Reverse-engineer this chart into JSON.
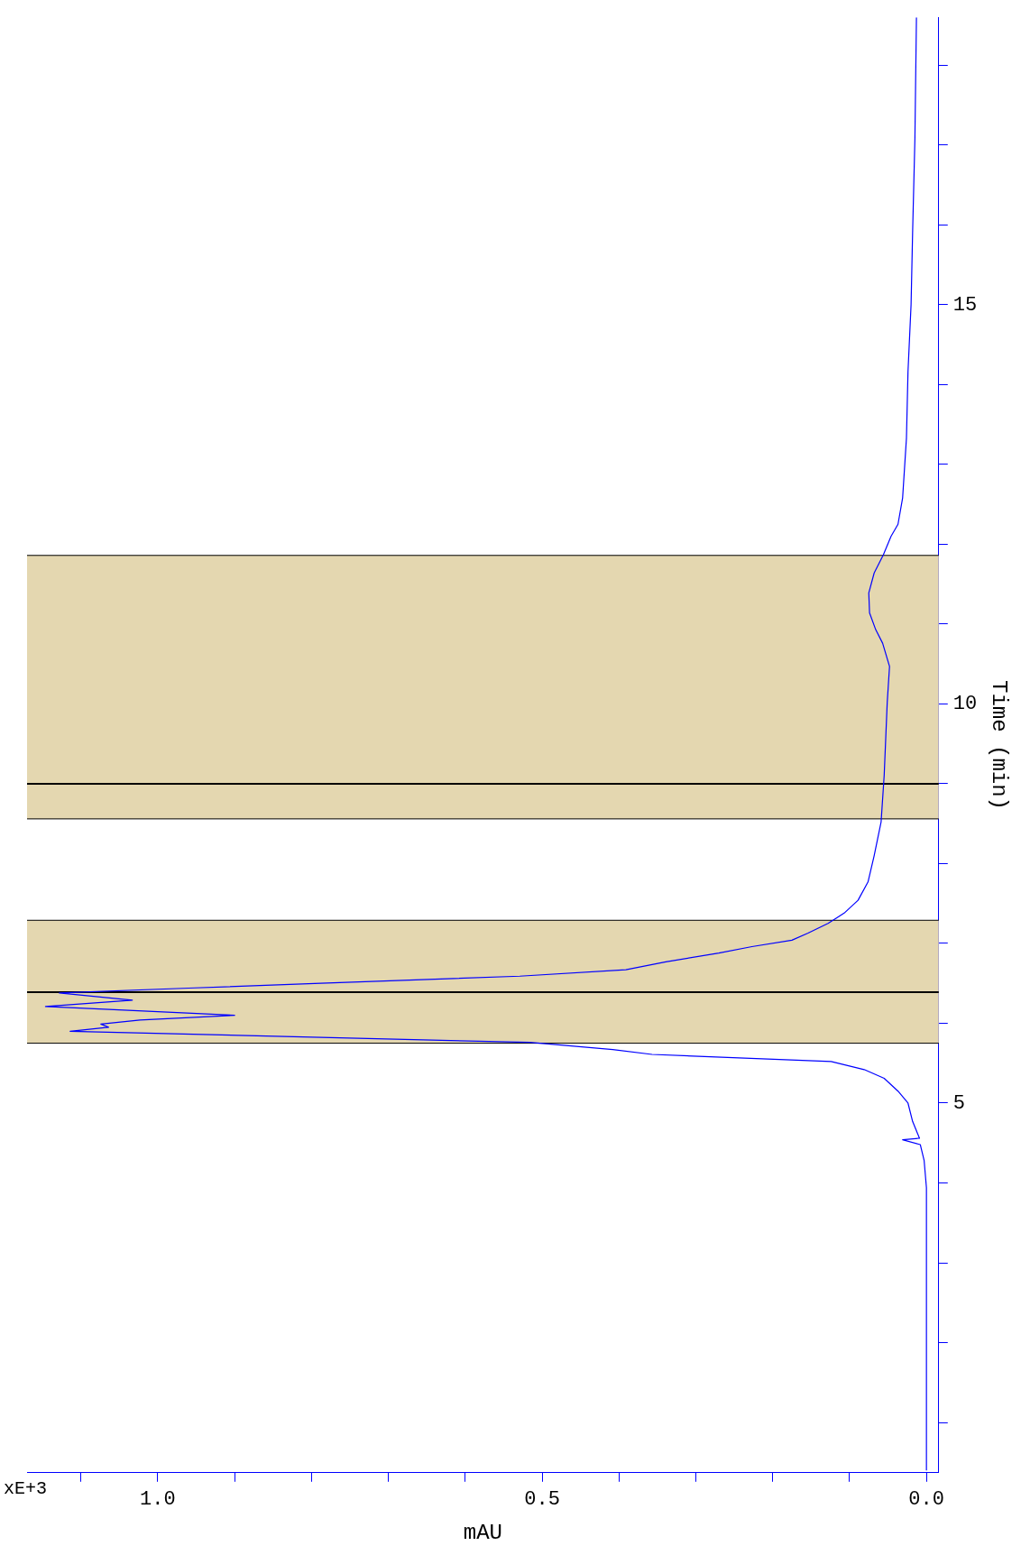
{
  "chart_data": {
    "type": "line",
    "xlabel": "mAU",
    "ylabel": "Time (min)",
    "annotations": [
      "xE+3"
    ],
    "series": [
      {
        "color": "#0000ff",
        "x": [
          0.0,
          0.0,
          0.003,
          0.008,
          0.031,
          0.009,
          0.018,
          0.024,
          0.037,
          0.055,
          0.081,
          0.124,
          0.357,
          0.408,
          0.516,
          1.114,
          1.064,
          1.074,
          1.023,
          0.9,
          1.146,
          1.033,
          1.128,
          0.96,
          0.788,
          0.529,
          0.391,
          0.339,
          0.27,
          0.227,
          0.175,
          0.154,
          0.128,
          0.107,
          0.089,
          0.076,
          0.068,
          0.059,
          0.055,
          0.051,
          0.048,
          0.057,
          0.066,
          0.074,
          0.075,
          0.068,
          0.056,
          0.046,
          0.037,
          0.031,
          0.026,
          0.024,
          0.02,
          0.018,
          0.015,
          0.013
        ],
        "values": [
          0.4,
          3.94,
          4.28,
          4.48,
          4.54,
          4.56,
          4.77,
          5.0,
          5.15,
          5.31,
          5.42,
          5.52,
          5.61,
          5.67,
          5.76,
          5.9,
          5.95,
          5.99,
          6.04,
          6.1,
          6.21,
          6.29,
          6.38,
          6.44,
          6.5,
          6.59,
          6.67,
          6.77,
          6.88,
          6.96,
          7.04,
          7.13,
          7.25,
          7.38,
          7.54,
          7.77,
          8.1,
          8.52,
          9.1,
          10.02,
          10.47,
          10.76,
          10.93,
          11.14,
          11.39,
          11.64,
          11.87,
          12.1,
          12.25,
          12.58,
          13.33,
          14.16,
          15.0,
          15.9,
          17.08,
          18.6
        ]
      }
    ],
    "xlim": [
      1.17,
      -0.016
    ],
    "ylim": [
      0.37,
      18.6
    ],
    "xticks": [
      {
        "value": 0,
        "label": "0.0"
      },
      {
        "value": 0.1,
        "label": null
      },
      {
        "value": 0.2,
        "label": null
      },
      {
        "value": 0.3,
        "label": null
      },
      {
        "value": 0.4,
        "label": null
      },
      {
        "value": 0.5,
        "label": "0.5"
      },
      {
        "value": 0.6,
        "label": null
      },
      {
        "value": 0.7,
        "label": null
      },
      {
        "value": 0.8,
        "label": null
      },
      {
        "value": 0.9,
        "label": null
      },
      {
        "value": 1.0,
        "label": "1.0"
      },
      {
        "value": 1.1,
        "label": null
      }
    ],
    "yticks": [
      {
        "value": 1,
        "label": null
      },
      {
        "value": 2,
        "label": null
      },
      {
        "value": 3,
        "label": null
      },
      {
        "value": 4,
        "label": null
      },
      5,
      {
        "value": 6,
        "label": null
      },
      {
        "value": 7,
        "label": null
      },
      {
        "value": 8,
        "label": null
      },
      {
        "value": 9,
        "label": null
      },
      10,
      {
        "value": 11,
        "label": null
      },
      {
        "value": 12,
        "label": null
      },
      {
        "value": 13,
        "label": null
      },
      {
        "value": 14,
        "label": null
      },
      15,
      {
        "value": 16,
        "label": null
      },
      {
        "value": 17,
        "label": null
      },
      {
        "value": 18,
        "label": null
      }
    ],
    "bands": [
      {
        "axis": "y",
        "from": 5.75,
        "to": 7.29,
        "color": "#e4d7b0"
      },
      {
        "axis": "y",
        "from": 8.56,
        "to": 11.86,
        "color": "#e4d7b0"
      }
    ],
    "ref_lines": [
      {
        "axis": "y",
        "value": 6.39,
        "color": "#000000"
      },
      {
        "axis": "y",
        "value": 9.0,
        "color": "#000000"
      }
    ],
    "grid": false,
    "legend": false,
    "marker": "none",
    "line_style": "solid"
  }
}
